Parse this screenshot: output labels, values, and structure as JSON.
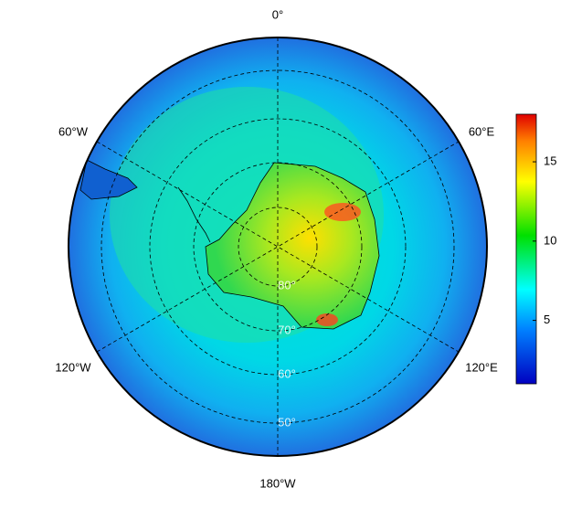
{
  "map": {
    "longitude_labels": [
      "0°",
      "60°E",
      "120°E",
      "180°W",
      "120°W",
      "60°W"
    ],
    "latitude_labels": [
      "80°",
      "70°",
      "60°",
      "50°"
    ],
    "colorbar": {
      "lim": [
        1,
        18
      ],
      "ticks": [
        5,
        10,
        15
      ]
    }
  }
}
